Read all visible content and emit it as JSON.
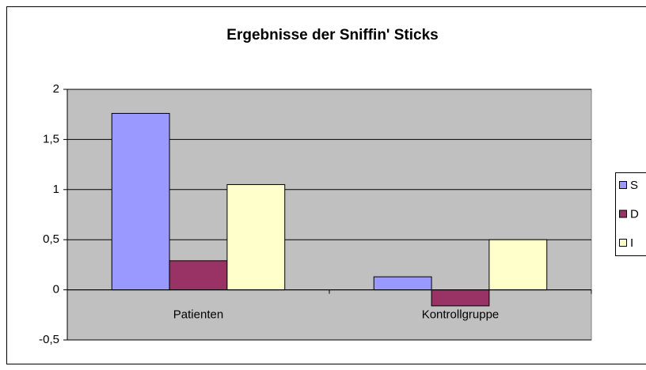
{
  "chart_data": {
    "type": "bar",
    "title": "Ergebnisse der Sniffin' Sticks",
    "categories": [
      "Patienten",
      "Kontrollgruppe"
    ],
    "series": [
      {
        "name": "S",
        "color": "#9999ff",
        "values": [
          1.76,
          0.13
        ]
      },
      {
        "name": "D",
        "color": "#993366",
        "values": [
          0.29,
          -0.16
        ]
      },
      {
        "name": "I",
        "color": "#ffffcc",
        "values": [
          1.05,
          0.5
        ]
      }
    ],
    "ylim": [
      -0.5,
      2
    ],
    "yticks": [
      {
        "value": -0.5,
        "label": "-0,5"
      },
      0,
      {
        "value": 0.5,
        "label": "0,5"
      },
      1,
      {
        "value": 1.5,
        "label": "1,5"
      },
      2
    ],
    "grid": true,
    "legend": "right"
  }
}
